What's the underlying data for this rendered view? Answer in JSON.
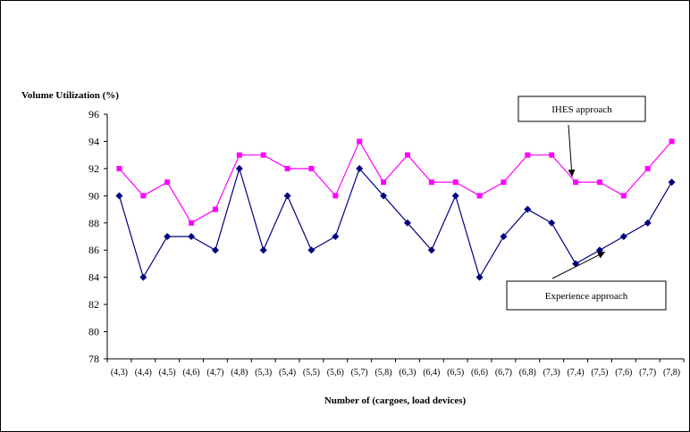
{
  "chart_data": {
    "type": "line",
    "ylabel": "Volume Utilization (%)",
    "xlabel": "Number of (cargoes, load devices)",
    "ylim": [
      78,
      96
    ],
    "yticks": [
      78,
      80,
      82,
      84,
      86,
      88,
      90,
      92,
      94,
      96
    ],
    "grid": false,
    "categories": [
      "(4,3)",
      "(4,4)",
      "(4,5)",
      "(4,6)",
      "(4,7)",
      "(4,8)",
      "(5,3)",
      "(5,4)",
      "(5,5)",
      "(5,6)",
      "(5,7)",
      "(5,8)",
      "(6,3)",
      "(6,4)",
      "(6,5)",
      "(6,6)",
      "(6,7)",
      "(6,8)",
      "(7,3)",
      "(7,4)",
      "(7,5)",
      "(7,6)",
      "(7,7)",
      "(7,8)"
    ],
    "series": [
      {
        "name": "IHES approach",
        "color": "#ff00ff",
        "marker": "square",
        "values": [
          92,
          90,
          91,
          88,
          89,
          93,
          93,
          92,
          92,
          90,
          94,
          91,
          93,
          91,
          91,
          90,
          91,
          93,
          93,
          91,
          91,
          90,
          92,
          94
        ]
      },
      {
        "name": "Experience approach",
        "color": "#000080",
        "marker": "diamond",
        "values": [
          90,
          84,
          87,
          87,
          86,
          92,
          86,
          90,
          86,
          87,
          92,
          90,
          88,
          86,
          90,
          84,
          87,
          89,
          88,
          85,
          86,
          87,
          88,
          91
        ]
      }
    ],
    "annotations": [
      {
        "text": "IHES approach",
        "points_to_series": 0,
        "points_to_index": 19
      },
      {
        "text": "Experience approach",
        "points_to_series": 1,
        "points_to_index": 20
      }
    ]
  }
}
